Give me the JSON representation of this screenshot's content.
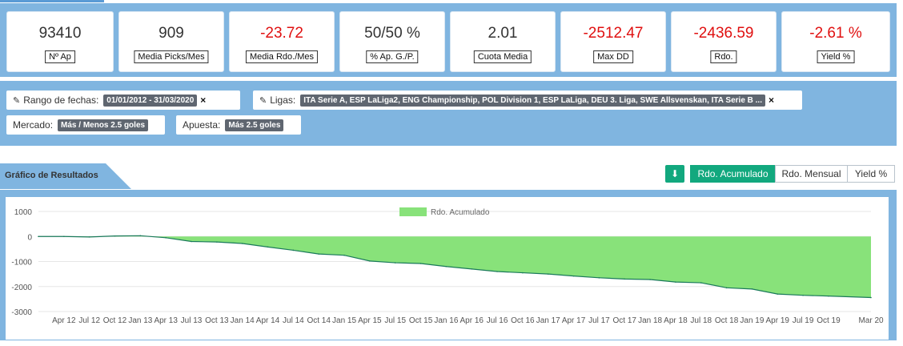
{
  "stats": [
    {
      "value": "93410",
      "label": "Nº Ap",
      "negative": false
    },
    {
      "value": "909",
      "label": "Media Picks/Mes",
      "negative": false
    },
    {
      "value": "-23.72",
      "label": "Media Rdo./Mes",
      "negative": true
    },
    {
      "value": "50/50 %",
      "label": "% Ap. G./P.",
      "negative": false
    },
    {
      "value": "2.01",
      "label": "Cuota Media",
      "negative": false
    },
    {
      "value": "-2512.47",
      "label": "Max DD",
      "negative": true
    },
    {
      "value": "-2436.59",
      "label": "Rdo.",
      "negative": true
    },
    {
      "value": "-2.61 %",
      "label": "Yield %",
      "negative": true
    }
  ],
  "filters": {
    "date_range": {
      "label": "Rango de fechas:",
      "value": "01/01/2012 - 31/03/2020"
    },
    "leagues": {
      "label": "Ligas:",
      "value": "ITA Serie A, ESP LaLiga2, ENG Championship, POL Division 1, ESP LaLiga, DEU 3. Liga, SWE Allsvenskan, ITA Serie B ..."
    },
    "market": {
      "label": "Mercado:",
      "value": "Más / Menos 2.5 goles"
    },
    "bet": {
      "label": "Apuesta:",
      "value": "Más 2.5 goles"
    }
  },
  "results": {
    "title": "Gráfico de Resultados",
    "buttons": [
      "Rdo. Acumulado",
      "Rdo. Mensual",
      "Yield %"
    ],
    "active": "Rdo. Acumulado"
  },
  "colors": {
    "accent": "#12a87e",
    "band": "#80b5e0",
    "negative": "#e01010",
    "area_fill": "#88e27a",
    "area_line": "#1a7a5a"
  },
  "chart_data": {
    "type": "area",
    "legend": [
      "Rdo. Acumulado"
    ],
    "legend_position": "top-center",
    "ylim": [
      -3000,
      1000
    ],
    "y_ticks": [
      1000,
      0,
      -1000,
      -2000,
      -3000
    ],
    "x_ticks": [
      "Apr 12",
      "Jul 12",
      "Oct 12",
      "Jan 13",
      "Apr 13",
      "Jul 13",
      "Oct 13",
      "Jan 14",
      "Apr 14",
      "Jul 14",
      "Oct 14",
      "Jan 15",
      "Apr 15",
      "Jul 15",
      "Oct 15",
      "Jan 16",
      "Apr 16",
      "Jul 16",
      "Oct 16",
      "Jan 17",
      "Apr 17",
      "Jul 17",
      "Oct 17",
      "Jan 18",
      "Apr 18",
      "Jul 18",
      "Oct 18",
      "Jan 19",
      "Apr 19",
      "Jul 19",
      "Oct 19",
      "Mar 20"
    ],
    "grid": true,
    "series": [
      {
        "name": "Rdo. Acumulado",
        "x": [
          "Jan 12",
          "Apr 12",
          "Jul 12",
          "Oct 12",
          "Jan 13",
          "Apr 13",
          "Jul 13",
          "Oct 13",
          "Jan 14",
          "Apr 14",
          "Jul 14",
          "Oct 14",
          "Jan 15",
          "Apr 15",
          "Jul 15",
          "Oct 15",
          "Jan 16",
          "Apr 16",
          "Jul 16",
          "Oct 16",
          "Jan 17",
          "Apr 17",
          "Jul 17",
          "Oct 17",
          "Jan 18",
          "Apr 18",
          "Jul 18",
          "Oct 18",
          "Jan 19",
          "Apr 19",
          "Jul 19",
          "Oct 19",
          "Mar 20"
        ],
        "values": [
          0,
          0,
          -20,
          20,
          30,
          -50,
          -200,
          -220,
          -280,
          -420,
          -550,
          -700,
          -750,
          -980,
          -1050,
          -1080,
          -1200,
          -1300,
          -1400,
          -1450,
          -1500,
          -1580,
          -1650,
          -1700,
          -1720,
          -1820,
          -1850,
          -2050,
          -2100,
          -2300,
          -2350,
          -2380,
          -2440
        ]
      }
    ]
  }
}
